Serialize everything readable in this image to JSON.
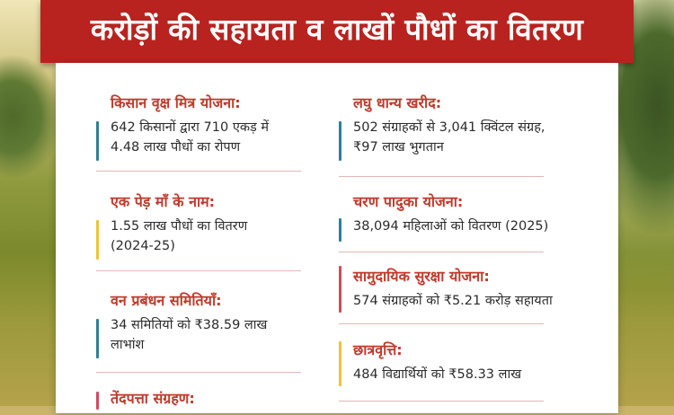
{
  "header": {
    "title": "करोड़ों की सहायता व लाखों पौधों का वितरण"
  },
  "colors": {
    "banner": "#b8231f",
    "title_text": "#c0392b",
    "bar_blue": "#2f7f96",
    "bar_yellow": "#f0c23a",
    "bar_red": "#d24a5a"
  },
  "left_column": [
    {
      "title": "किसान वृक्ष मित्र योजना:",
      "body_line1": "642 किसानों द्वारा 710 एकड़ में",
      "body_line2": "4.48 लाख पौधों का रोपण",
      "bar": "blue"
    },
    {
      "title": "एक पेड़ माँ के नाम:",
      "body_line1": "1.55 लाख पौधों का वितरण",
      "body_line2": "(2024-25)",
      "bar": "yellow"
    },
    {
      "title": "वन प्रबंधन समितियाँ:",
      "body_line1": "34 समितियों को ₹38.59 लाख",
      "body_line2": "लाभांश",
      "bar": "blue"
    },
    {
      "title": "तेंदपत्ता संग्रहण:",
      "body_line1": "",
      "body_line2": "",
      "bar": "red"
    }
  ],
  "right_column": [
    {
      "title": "लघु धान्य खरीद:",
      "body_line1": "502 संग्राहकों से 3,041 क्विंटल संग्रह,",
      "body_line2": "₹97 लाख भुगतान",
      "bar": "blue"
    },
    {
      "title": "चरण पादुका योजना:",
      "body_line1": "38,094 महिलाओं को वितरण (2025)",
      "body_line2": "",
      "bar": "blue"
    },
    {
      "title": "सामुदायिक सुरक्षा योजना:",
      "body_line1": "574 संग्राहकों को ₹5.21 करोड़ सहायता",
      "body_line2": "",
      "bar": "red"
    },
    {
      "title": "छात्रवृत्ति:",
      "body_line1": "484 विद्यार्थियों को ₹58.33 लाख",
      "body_line2": "",
      "bar": "yellow"
    }
  ]
}
